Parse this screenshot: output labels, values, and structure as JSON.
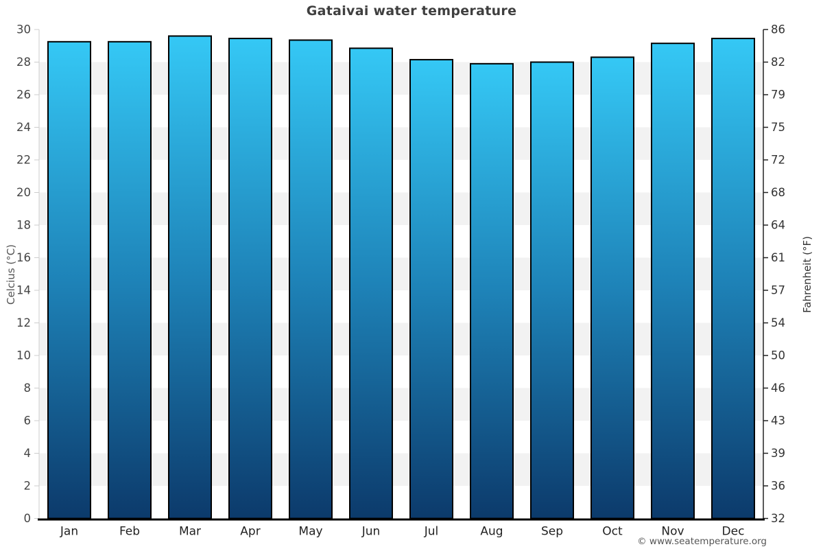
{
  "chart_data": {
    "type": "bar",
    "title": "Gataivai water temperature",
    "categories": [
      "Jan",
      "Feb",
      "Mar",
      "Apr",
      "May",
      "Jun",
      "Jul",
      "Aug",
      "Sep",
      "Oct",
      "Nov",
      "Dec"
    ],
    "values": [
      29.25,
      29.25,
      29.6,
      29.45,
      29.35,
      28.85,
      28.15,
      27.9,
      28.0,
      28.3,
      29.15,
      29.45
    ],
    "unit": "°C",
    "xlabel": "",
    "ylabel_left": "Celcius (°C)",
    "ylabel_right": "Fahrenheit (°F)",
    "ylim": [
      0,
      30
    ],
    "celsius_ticks_top_down": [
      30,
      28,
      26,
      24,
      22,
      20,
      18,
      16,
      14,
      12,
      10,
      8,
      6,
      4,
      2,
      0
    ],
    "fahrenheit_ticks_top_down": [
      86,
      82,
      79,
      75,
      72,
      68,
      64,
      61,
      57,
      54,
      50,
      46,
      43,
      39,
      36,
      32
    ],
    "legend": "none",
    "grid": "alternating horizontal bands every 2°C",
    "colors": {
      "bar_gradient_top": "#35c8f5",
      "bar_gradient_middle": "#1e83b8",
      "bar_gradient_bottom": "#0c3a6b",
      "bar_border": "#000000",
      "band_gray": "#f2f2f2",
      "band_white": "#ffffff",
      "left_axis_line": "#cccccc",
      "right_axis_line": "#222222",
      "bottom_axis_line": "#000000",
      "tick_label": "#444444",
      "month_label": "#222222",
      "title_color": "#3f3f3f"
    }
  },
  "footer": {
    "attribution": "© www.seatemperature.org"
  }
}
